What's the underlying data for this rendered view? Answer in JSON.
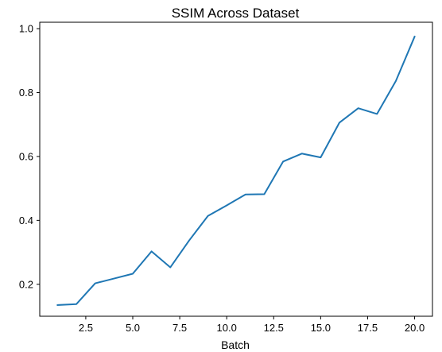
{
  "chart_data": {
    "type": "line",
    "title": "SSIM Across Dataset",
    "xlabel": "Batch",
    "ylabel": "",
    "xlim": [
      0.05,
      20.95
    ],
    "ylim": [
      0.1,
      1.02
    ],
    "xticks": [
      2.5,
      5.0,
      7.5,
      10.0,
      12.5,
      15.0,
      17.5,
      20.0
    ],
    "xtick_labels": [
      "2.5",
      "5.0",
      "7.5",
      "10.0",
      "12.5",
      "15.0",
      "17.5",
      "20.0"
    ],
    "yticks": [
      0.2,
      0.4,
      0.6,
      0.8,
      1.0
    ],
    "ytick_labels": [
      "0.2",
      "0.4",
      "0.6",
      "0.8",
      "1.0"
    ],
    "grid": false,
    "legend": "none",
    "series": [
      {
        "color": "#1f77b4",
        "x": [
          1,
          2,
          3,
          4,
          5,
          6,
          7,
          8,
          9,
          10,
          11,
          12,
          13,
          14,
          15,
          16,
          17,
          18,
          19,
          20
        ],
        "y": [
          0.135,
          0.138,
          0.203,
          0.218,
          0.233,
          0.303,
          0.253,
          0.337,
          0.414,
          0.447,
          0.481,
          0.482,
          0.584,
          0.609,
          0.597,
          0.706,
          0.751,
          0.733,
          0.836,
          0.975
        ]
      }
    ]
  }
}
